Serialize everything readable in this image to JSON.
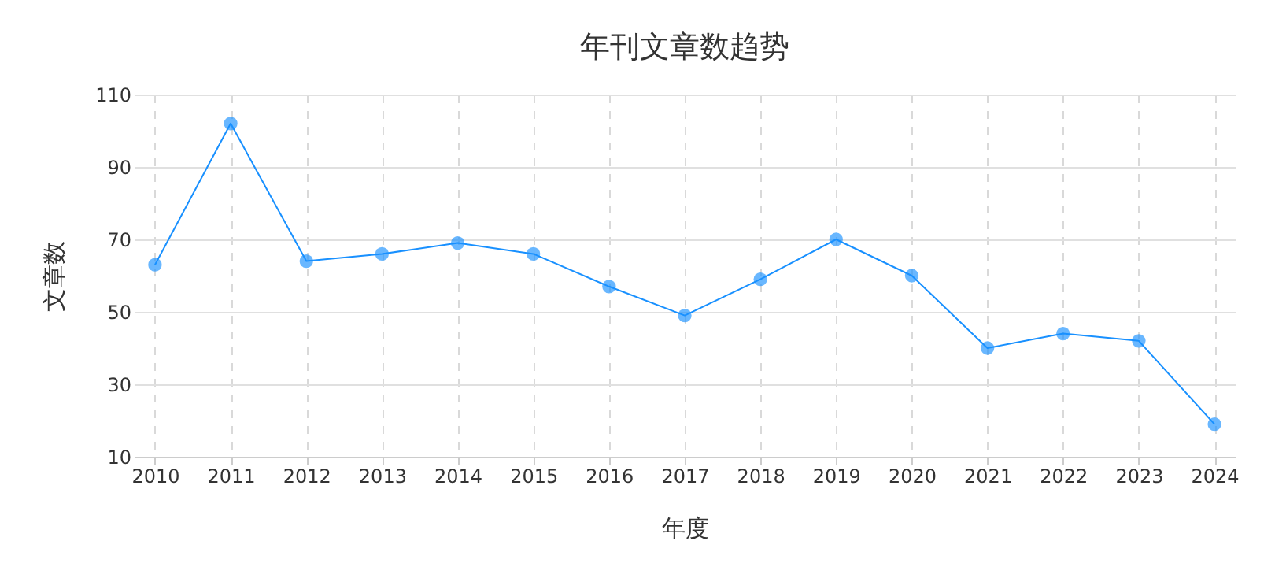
{
  "chart_data": {
    "type": "line",
    "title": "年刊文章数趋势",
    "xlabel": "年度",
    "ylabel": "文章数",
    "categories": [
      "2010",
      "2011",
      "2012",
      "2013",
      "2014",
      "2015",
      "2016",
      "2017",
      "2018",
      "2019",
      "2020",
      "2021",
      "2022",
      "2023",
      "2024"
    ],
    "series": [
      {
        "color": "#1890ff",
        "values": [
          63,
          102,
          64,
          66,
          69,
          66,
          57,
          49,
          59,
          70,
          60,
          40,
          44,
          42,
          19
        ]
      }
    ],
    "ylim": [
      10,
      110
    ],
    "yticks": [
      10,
      30,
      50,
      70,
      90,
      110
    ],
    "grid": true,
    "marker": "circle",
    "line_style": "solid"
  }
}
